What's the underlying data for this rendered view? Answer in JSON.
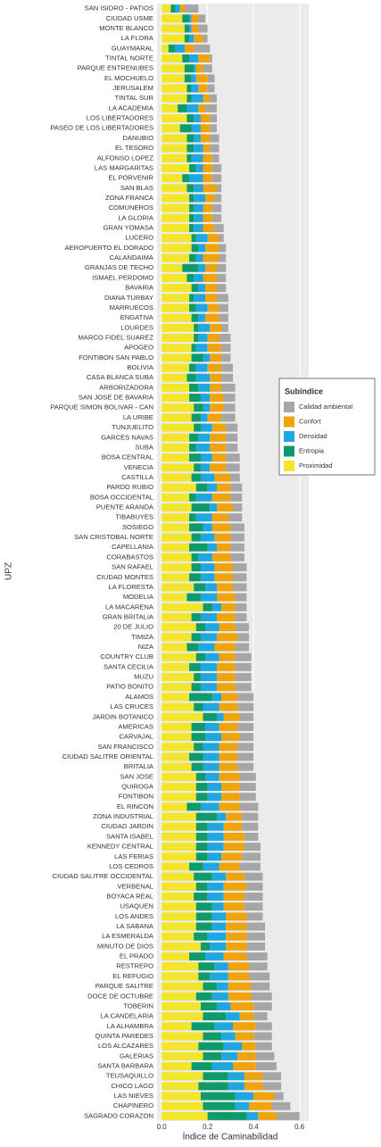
{
  "chart_data": {
    "type": "stacked_barh",
    "x_label": "Índice de Caminabilidad",
    "y_label": "UPZ",
    "legend_title": "Subíndice",
    "legend_position": "right",
    "xlim": [
      -0.02,
      0.64
    ],
    "xticks": [
      {
        "value": 0,
        "label": "0.0"
      },
      0.2,
      0.4,
      0.6
    ],
    "grid": true,
    "categories": [
      "SAN ISIDRO - PATIOS",
      "CIUDAD USME",
      "MONTE BLANCO",
      "LA FLORA",
      "GUAYMARAL",
      "TINTAL NORTE",
      "PARQUE ENTRENUBES",
      "EL MOCHUELO",
      "JERUSALEM",
      "TINTAL SUR",
      "LA ACADEMIA",
      "LOS LIBERTADORES",
      "PASEO DE LOS LIBERTADORES",
      "DANUBIO",
      "EL TESORO",
      "ALFONSO LOPEZ",
      "LAS MARGARITAS",
      "EL PORVENIR",
      "SAN BLAS",
      "ZONA FRANCA",
      "COMUNEROS",
      "LA GLORIA",
      "GRAN YOMASA",
      "LUCERO",
      "AEROPUERTO EL DORADO",
      "CALANDAIMA",
      "GRANJAS DE TECHO",
      "ISMAEL PERDOMO",
      "BAVARIA",
      "DIANA TURBAY",
      "MARRUECOS",
      "ENGATIVA",
      "LOURDES",
      "MARCO FIDEL SUAREZ",
      "APOGEO",
      "FONTIBON SAN PABLO",
      "BOLIVIA",
      "CASA BLANCA SUBA",
      "ARBORIZADORA",
      "SAN JOSE DE BAVARIA",
      "PARQUE SIMON BOLIVAR - CAN",
      "LA URIBE",
      "TUNJUELITO",
      "GARCES NAVAS",
      "SUBA",
      "BOSA CENTRAL",
      "VENECIA",
      "CASTILLA",
      "PARDO RUBIO",
      "BOSA OCCIDENTAL",
      "PUENTE ARANDA",
      "TIBABUYES",
      "SOSIEGO",
      "SAN CRISTOBAL NORTE",
      "CAPELLANIA",
      "CORABASTOS",
      "SAN RAFAEL",
      "CIUDAD MONTES",
      "LA FLORESTA",
      "MODELIA",
      "LA MACARENA",
      "GRAN BRITALIA",
      "20 DE JULIO",
      "TIMIZA",
      "NIZA",
      "COUNTRY CLUB",
      "SANTA CECILIA",
      "MUZU",
      "PATIO BONITO",
      "ALAMOS",
      "LAS CRUCES",
      "JARDIN BOTANICO",
      "AMERICAS",
      "CARVAJAL",
      "SAN FRANCISCO",
      "CIUDAD SALITRE ORIENTAL",
      "BRITALIA",
      "SAN JOSE",
      "QUIROGA",
      "FONTIBON",
      "EL RINCON",
      "ZONA INDUSTRIAL",
      "CIUDAD JARDIN",
      "SANTA ISABEL",
      "KENNEDY CENTRAL",
      "LAS FERIAS",
      "LOS CEDROS",
      "CIUDAD SALITRE OCCIDENTAL",
      "VERBENAL",
      "BOYACA REAL",
      "USAQUEN",
      "LOS ANDES",
      "LA SABANA",
      "LA ESMERALDA",
      "MINUTO DE DIOS",
      "EL PRADO",
      "RESTREPO",
      "EL REFUGIO",
      "PARQUE SALITRE",
      "DOCE DE OCTUBRE",
      "TOBERIN",
      "LA CANDELARIA",
      "LA ALHAMBRA",
      "QUINTA PAREDES",
      "LOS ALCAZARES",
      "GALERIAS",
      "SANTA BARBARA",
      "TEUSAQUILLO",
      "CHICO LAGO",
      "LAS NIEVES",
      "CHAPINERO",
      "SAGRADO CORAZON"
    ],
    "series": [
      {
        "name": "Calidad ambiental",
        "color": "#a6a6a6",
        "values": [
          0.06,
          0.03,
          0.04,
          0.02,
          0.07,
          0.01,
          0.04,
          0.03,
          0.03,
          0.03,
          0.05,
          0.03,
          0.03,
          0.04,
          0.04,
          0.03,
          0.04,
          0.04,
          0.02,
          0.03,
          0.04,
          0.04,
          0.04,
          0.02,
          0.03,
          0.03,
          0.04,
          0.04,
          0.04,
          0.05,
          0.04,
          0.04,
          0.03,
          0.05,
          0.04,
          0.04,
          0.05,
          0.05,
          0.06,
          0.05,
          0.05,
          0.06,
          0.05,
          0.05,
          0.05,
          0.06,
          0.06,
          0.04,
          0.05,
          0.05,
          0.04,
          0.06,
          0.06,
          0.06,
          0.06,
          0.06,
          0.06,
          0.06,
          0.06,
          0.05,
          0.05,
          0.05,
          0.06,
          0.05,
          0.06,
          0.07,
          0.07,
          0.07,
          0.07,
          0.07,
          0.07,
          0.06,
          0.07,
          0.06,
          0.07,
          0.07,
          0.07,
          0.07,
          0.07,
          0.07,
          0.08,
          0.07,
          0.07,
          0.06,
          0.07,
          0.08,
          0.09,
          0.08,
          0.07,
          0.08,
          0.08,
          0.07,
          0.08,
          0.08,
          0.08,
          0.09,
          0.08,
          0.09,
          0.08,
          0.09,
          0.08,
          0.06,
          0.07,
          0.08,
          0.07,
          0.08,
          0.09,
          0.08,
          0.08,
          0.04,
          0.08,
          0.1
        ]
      },
      {
        "name": "Confort",
        "color": "#f0a30a",
        "values": [
          0.02,
          0.03,
          0.03,
          0.04,
          0.04,
          0.05,
          0.03,
          0.05,
          0.04,
          0.03,
          0.03,
          0.04,
          0.04,
          0.04,
          0.03,
          0.04,
          0.04,
          0.04,
          0.06,
          0.04,
          0.04,
          0.04,
          0.05,
          0.05,
          0.06,
          0.07,
          0.05,
          0.06,
          0.05,
          0.05,
          0.05,
          0.06,
          0.05,
          0.05,
          0.06,
          0.05,
          0.06,
          0.05,
          0.05,
          0.06,
          0.06,
          0.06,
          0.06,
          0.07,
          0.07,
          0.06,
          0.07,
          0.07,
          0.06,
          0.08,
          0.07,
          0.07,
          0.08,
          0.07,
          0.06,
          0.08,
          0.08,
          0.08,
          0.07,
          0.08,
          0.06,
          0.08,
          0.07,
          0.09,
          0.09,
          0.07,
          0.08,
          0.08,
          0.08,
          0.07,
          0.08,
          0.07,
          0.08,
          0.08,
          0.08,
          0.08,
          0.08,
          0.09,
          0.08,
          0.08,
          0.09,
          0.07,
          0.08,
          0.09,
          0.09,
          0.09,
          0.09,
          0.08,
          0.1,
          0.09,
          0.09,
          0.09,
          0.09,
          0.09,
          0.09,
          0.1,
          0.09,
          0.09,
          0.1,
          0.1,
          0.1,
          0.06,
          0.1,
          0.08,
          0.06,
          0.08,
          0.1,
          0.08,
          0.08,
          0.09,
          0.1,
          0.08
        ]
      },
      {
        "name": "Densidad",
        "color": "#1ea7e0",
        "values": [
          0.02,
          0.01,
          0.01,
          0.02,
          0.04,
          0.04,
          0.01,
          0.02,
          0.03,
          0.05,
          0.05,
          0.03,
          0.04,
          0.03,
          0.04,
          0.05,
          0.03,
          0.06,
          0.04,
          0.05,
          0.04,
          0.04,
          0.04,
          0.05,
          0.03,
          0.03,
          0.03,
          0.04,
          0.03,
          0.05,
          0.05,
          0.03,
          0.05,
          0.04,
          0.05,
          0.03,
          0.05,
          0.06,
          0.05,
          0.04,
          0.03,
          0.03,
          0.05,
          0.05,
          0.06,
          0.05,
          0.04,
          0.06,
          0.04,
          0.07,
          0.03,
          0.07,
          0.04,
          0.06,
          0.04,
          0.06,
          0.06,
          0.06,
          0.05,
          0.07,
          0.04,
          0.07,
          0.06,
          0.07,
          0.07,
          0.06,
          0.07,
          0.07,
          0.07,
          0.04,
          0.07,
          0.03,
          0.06,
          0.07,
          0.07,
          0.07,
          0.07,
          0.06,
          0.06,
          0.06,
          0.08,
          0.04,
          0.07,
          0.07,
          0.07,
          0.06,
          0.07,
          0.06,
          0.07,
          0.07,
          0.05,
          0.06,
          0.06,
          0.08,
          0.07,
          0.08,
          0.06,
          0.08,
          0.05,
          0.07,
          0.06,
          0.06,
          0.08,
          0.06,
          0.08,
          0.07,
          0.09,
          0.07,
          0.07,
          0.08,
          0.06,
          0.05
        ]
      },
      {
        "name": "Entropia",
        "color": "#0e9a6a",
        "values": [
          0.02,
          0.03,
          0.02,
          0.02,
          0.03,
          0.03,
          0.04,
          0.03,
          0.02,
          0.02,
          0.04,
          0.03,
          0.05,
          0.03,
          0.03,
          0.02,
          0.03,
          0.03,
          0.03,
          0.02,
          0.02,
          0.02,
          0.02,
          0.02,
          0.03,
          0.03,
          0.07,
          0.03,
          0.03,
          0.02,
          0.03,
          0.03,
          0.02,
          0.02,
          0.02,
          0.05,
          0.03,
          0.04,
          0.04,
          0.05,
          0.04,
          0.04,
          0.03,
          0.04,
          0.03,
          0.05,
          0.03,
          0.04,
          0.05,
          0.03,
          0.08,
          0.03,
          0.06,
          0.04,
          0.08,
          0.03,
          0.04,
          0.05,
          0.05,
          0.06,
          0.04,
          0.04,
          0.04,
          0.04,
          0.05,
          0.04,
          0.05,
          0.03,
          0.04,
          0.1,
          0.04,
          0.06,
          0.06,
          0.06,
          0.04,
          0.06,
          0.05,
          0.04,
          0.05,
          0.05,
          0.06,
          0.09,
          0.05,
          0.05,
          0.05,
          0.05,
          0.06,
          0.08,
          0.05,
          0.06,
          0.07,
          0.07,
          0.07,
          0.06,
          0.04,
          0.07,
          0.07,
          0.05,
          0.06,
          0.07,
          0.07,
          0.1,
          0.1,
          0.08,
          0.11,
          0.08,
          0.09,
          0.11,
          0.13,
          0.15,
          0.14,
          0.17
        ]
      },
      {
        "name": "Proximidad",
        "color": "#f2e52a",
        "values": [
          0.04,
          0.09,
          0.1,
          0.1,
          0.03,
          0.09,
          0.1,
          0.1,
          0.11,
          0.11,
          0.07,
          0.11,
          0.08,
          0.11,
          0.11,
          0.11,
          0.12,
          0.09,
          0.11,
          0.12,
          0.12,
          0.12,
          0.12,
          0.13,
          0.13,
          0.12,
          0.09,
          0.11,
          0.13,
          0.12,
          0.12,
          0.13,
          0.14,
          0.14,
          0.13,
          0.13,
          0.12,
          0.11,
          0.12,
          0.12,
          0.14,
          0.13,
          0.14,
          0.12,
          0.12,
          0.12,
          0.14,
          0.13,
          0.15,
          0.12,
          0.13,
          0.12,
          0.12,
          0.13,
          0.12,
          0.13,
          0.13,
          0.12,
          0.14,
          0.11,
          0.18,
          0.13,
          0.15,
          0.13,
          0.11,
          0.15,
          0.12,
          0.14,
          0.13,
          0.12,
          0.14,
          0.18,
          0.13,
          0.13,
          0.14,
          0.12,
          0.13,
          0.15,
          0.15,
          0.15,
          0.11,
          0.15,
          0.15,
          0.15,
          0.15,
          0.15,
          0.12,
          0.14,
          0.15,
          0.14,
          0.15,
          0.15,
          0.15,
          0.14,
          0.17,
          0.12,
          0.16,
          0.16,
          0.18,
          0.15,
          0.17,
          0.18,
          0.13,
          0.18,
          0.16,
          0.18,
          0.13,
          0.18,
          0.16,
          0.17,
          0.18,
          0.2
        ]
      }
    ]
  }
}
